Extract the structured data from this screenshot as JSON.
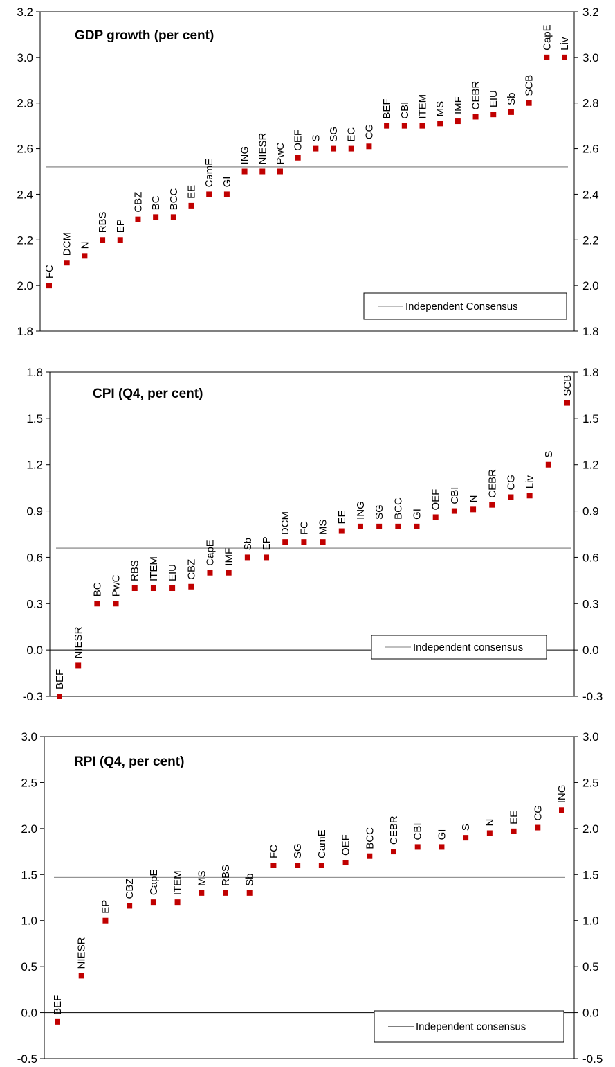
{
  "chart_data": [
    {
      "type": "scatter",
      "title": "GDP growth (per cent)",
      "ylim": [
        1.8,
        3.2
      ],
      "yticks": [
        "1.8",
        "2.0",
        "2.2",
        "2.4",
        "2.6",
        "2.8",
        "3.0",
        "3.2"
      ],
      "consensus": 2.52,
      "legend": "Independent Consensus",
      "legend_position": "bottom-right",
      "zero_line": false,
      "categories": [
        "FC",
        "DCM",
        "N",
        "RBS",
        "EP",
        "CBZ",
        "BC",
        "BCC",
        "EE",
        "CamE",
        "GI",
        "ING",
        "NIESR",
        "PwC",
        "OEF",
        "S",
        "SG",
        "EC",
        "CG",
        "BEF",
        "CBI",
        "ITEM",
        "MS",
        "IMF",
        "CEBR",
        "EIU",
        "Sb",
        "SCB",
        "CapE",
        "Liv"
      ],
      "values": [
        2.0,
        2.1,
        2.13,
        2.2,
        2.2,
        2.29,
        2.3,
        2.3,
        2.35,
        2.4,
        2.4,
        2.5,
        2.5,
        2.5,
        2.56,
        2.6,
        2.6,
        2.6,
        2.61,
        2.7,
        2.7,
        2.7,
        2.71,
        2.72,
        2.74,
        2.75,
        2.76,
        2.8,
        3.0,
        3.0
      ],
      "color": "#c00000"
    },
    {
      "type": "scatter",
      "title": "CPI (Q4, per cent)",
      "ylim": [
        -0.3,
        1.8
      ],
      "yticks": [
        "-0.3",
        "0.0",
        "0.3",
        "0.6",
        "0.9",
        "1.2",
        "1.5",
        "1.8"
      ],
      "consensus": 0.66,
      "legend": "Independent consensus",
      "legend_position": "bottom-right",
      "zero_line": true,
      "categories": [
        "BEF",
        "NIESR",
        "BC",
        "PwC",
        "RBS",
        "ITEM",
        "EIU",
        "CBZ",
        "CapE",
        "IMF",
        "Sb",
        "EP",
        "DCM",
        "FC",
        "MS",
        "EE",
        "ING",
        "SG",
        "BCC",
        "GI",
        "OEF",
        "CBI",
        "N",
        "CEBR",
        "CG",
        "Liv",
        "S",
        "SCB"
      ],
      "values": [
        -0.3,
        -0.1,
        0.3,
        0.3,
        0.4,
        0.4,
        0.4,
        0.41,
        0.5,
        0.5,
        0.6,
        0.6,
        0.7,
        0.7,
        0.7,
        0.77,
        0.8,
        0.8,
        0.8,
        0.8,
        0.86,
        0.9,
        0.91,
        0.94,
        0.99,
        1.0,
        1.2,
        1.6
      ],
      "color": "#c00000"
    },
    {
      "type": "scatter",
      "title": "RPI (Q4, per cent)",
      "ylim": [
        -0.5,
        3.0
      ],
      "yticks": [
        "-0.5",
        "0.0",
        "0.5",
        "1.0",
        "1.5",
        "2.0",
        "2.5",
        "3.0"
      ],
      "consensus": 1.47,
      "legend": "Independent consensus",
      "legend_position": "bottom-right",
      "zero_line": true,
      "categories": [
        "BEF",
        "NIESR",
        "EP",
        "CBZ",
        "CapE",
        "ITEM",
        "MS",
        "RBS",
        "Sb",
        "FC",
        "SG",
        "CamE",
        "OEF",
        "BCC",
        "CEBR",
        "CBI",
        "GI",
        "S",
        "N",
        "EE",
        "CG",
        "ING"
      ],
      "values": [
        -0.1,
        0.4,
        1.0,
        1.16,
        1.2,
        1.2,
        1.3,
        1.3,
        1.3,
        1.6,
        1.6,
        1.6,
        1.63,
        1.7,
        1.75,
        1.8,
        1.8,
        1.9,
        1.95,
        1.97,
        2.01,
        2.2
      ],
      "color": "#c00000"
    }
  ]
}
